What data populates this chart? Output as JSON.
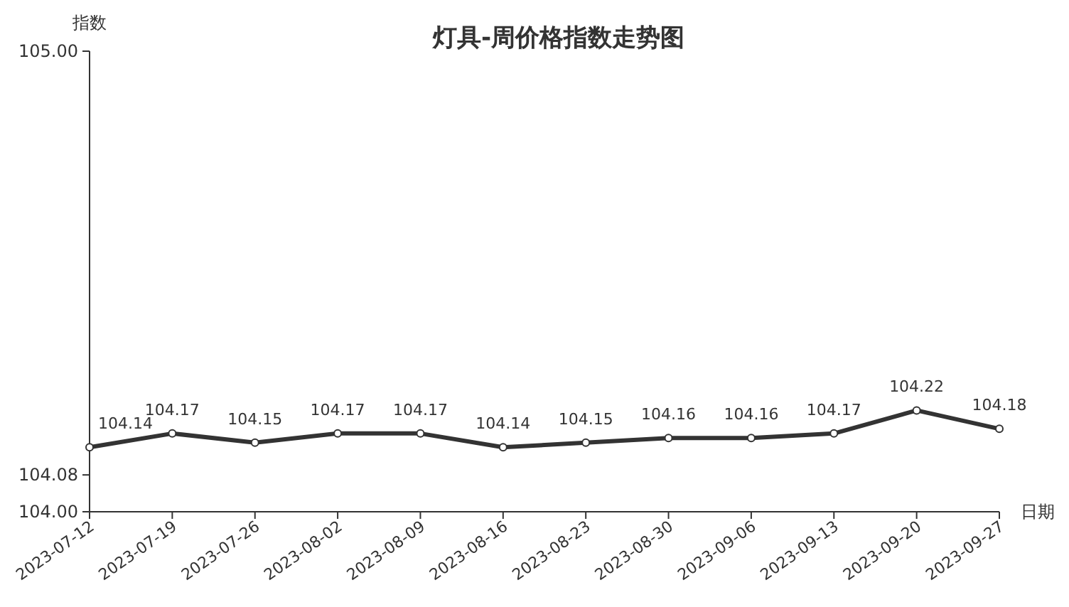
{
  "chart_data": {
    "type": "line",
    "title": "灯具-周价格指数走势图",
    "xlabel": "日期",
    "ylabel": "指数",
    "categories": [
      "2023-07-12",
      "2023-07-19",
      "2023-07-26",
      "2023-08-02",
      "2023-08-09",
      "2023-08-16",
      "2023-08-23",
      "2023-08-30",
      "2023-09-06",
      "2023-09-13",
      "2023-09-20",
      "2023-09-27"
    ],
    "values": [
      104.14,
      104.17,
      104.15,
      104.17,
      104.17,
      104.14,
      104.15,
      104.16,
      104.16,
      104.17,
      104.22,
      104.18
    ],
    "color": "#333333",
    "marker": "circle",
    "data_labels": true,
    "ylim": [
      104.0,
      105.0
    ],
    "yticks": [
      {
        "value": 104.0,
        "label": "104.00"
      },
      {
        "value": 104.08,
        "label": "104.08"
      },
      {
        "value": 105.0,
        "label": "105.00"
      }
    ]
  }
}
